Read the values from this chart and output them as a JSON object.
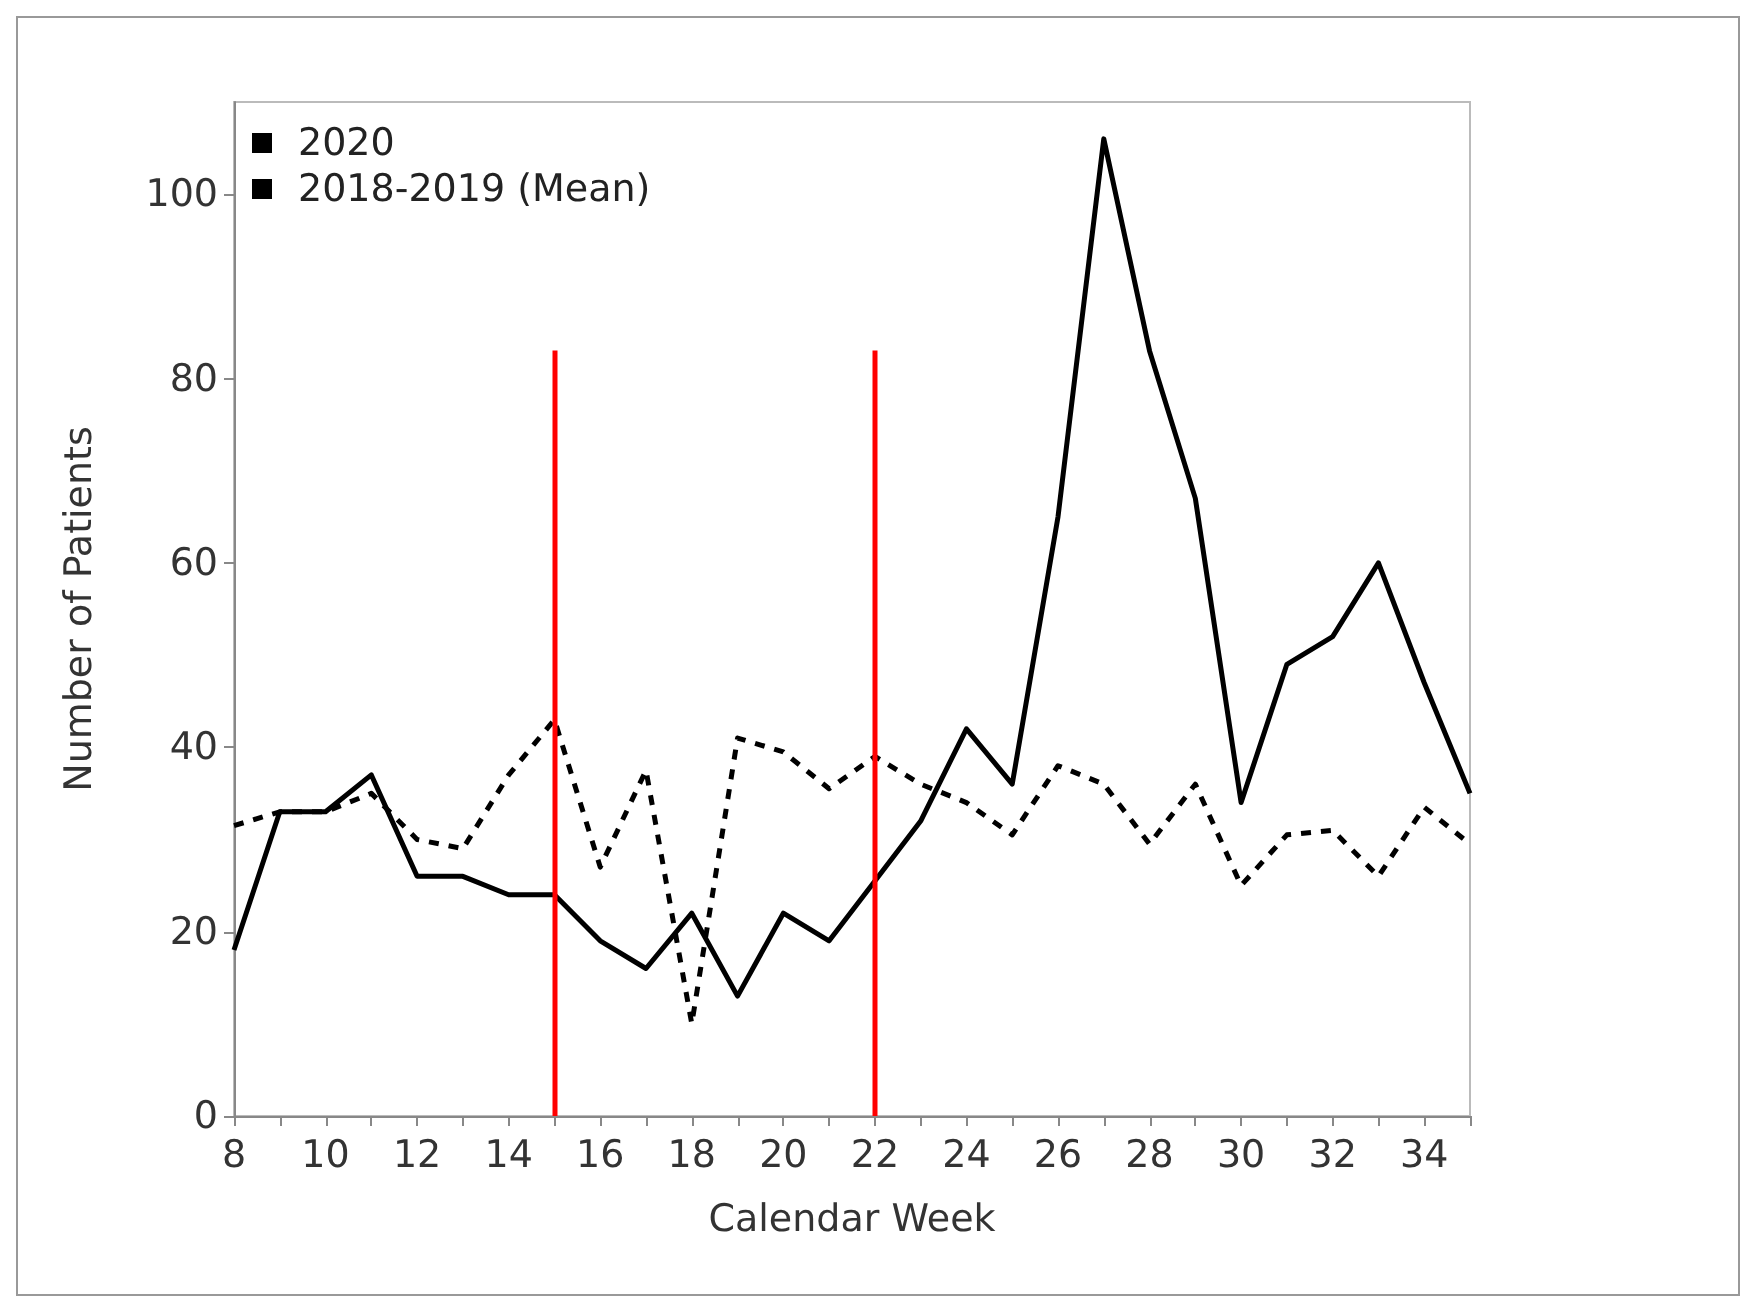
{
  "chart_data": {
    "type": "line",
    "xlabel": "Calendar Week",
    "ylabel": "Number of Patients",
    "x": [
      8,
      9,
      10,
      11,
      12,
      13,
      14,
      15,
      16,
      17,
      18,
      19,
      20,
      21,
      22,
      23,
      24,
      25,
      26,
      27,
      28,
      29,
      30,
      31,
      32,
      33,
      34,
      35
    ],
    "series": [
      {
        "name": "2020",
        "color": "#000000",
        "line_style": "solid",
        "values": [
          18,
          33,
          33,
          37,
          26,
          26,
          24,
          24,
          19,
          16,
          22,
          13,
          22,
          19,
          25.5,
          32,
          42,
          36,
          65,
          106,
          83,
          67,
          34,
          49,
          52,
          60,
          47,
          35
        ]
      },
      {
        "name": "2018-2019 (Mean)",
        "color": "#000000",
        "line_style": "dashed",
        "values": [
          31.5,
          33,
          33,
          35,
          30,
          29,
          37,
          43,
          27,
          37.5,
          10,
          41,
          39.5,
          35.5,
          39,
          36,
          34,
          30.5,
          38,
          36,
          29.5,
          36,
          25,
          30.5,
          31,
          26,
          33.5,
          29.5
        ]
      }
    ],
    "xlim": [
      8,
      35
    ],
    "xticks": [
      8,
      10,
      12,
      14,
      16,
      18,
      20,
      22,
      24,
      26,
      28,
      30,
      32,
      34
    ],
    "ylim": [
      0,
      110
    ],
    "yticks": [
      0,
      20,
      40,
      60,
      80,
      100
    ],
    "ref_lines": [
      {
        "axis": "x",
        "value": 15,
        "color": "#ff0000"
      },
      {
        "axis": "x",
        "value": 22,
        "color": "#ff0000"
      }
    ],
    "grid": false,
    "legend": "top left",
    "marker": "none"
  }
}
